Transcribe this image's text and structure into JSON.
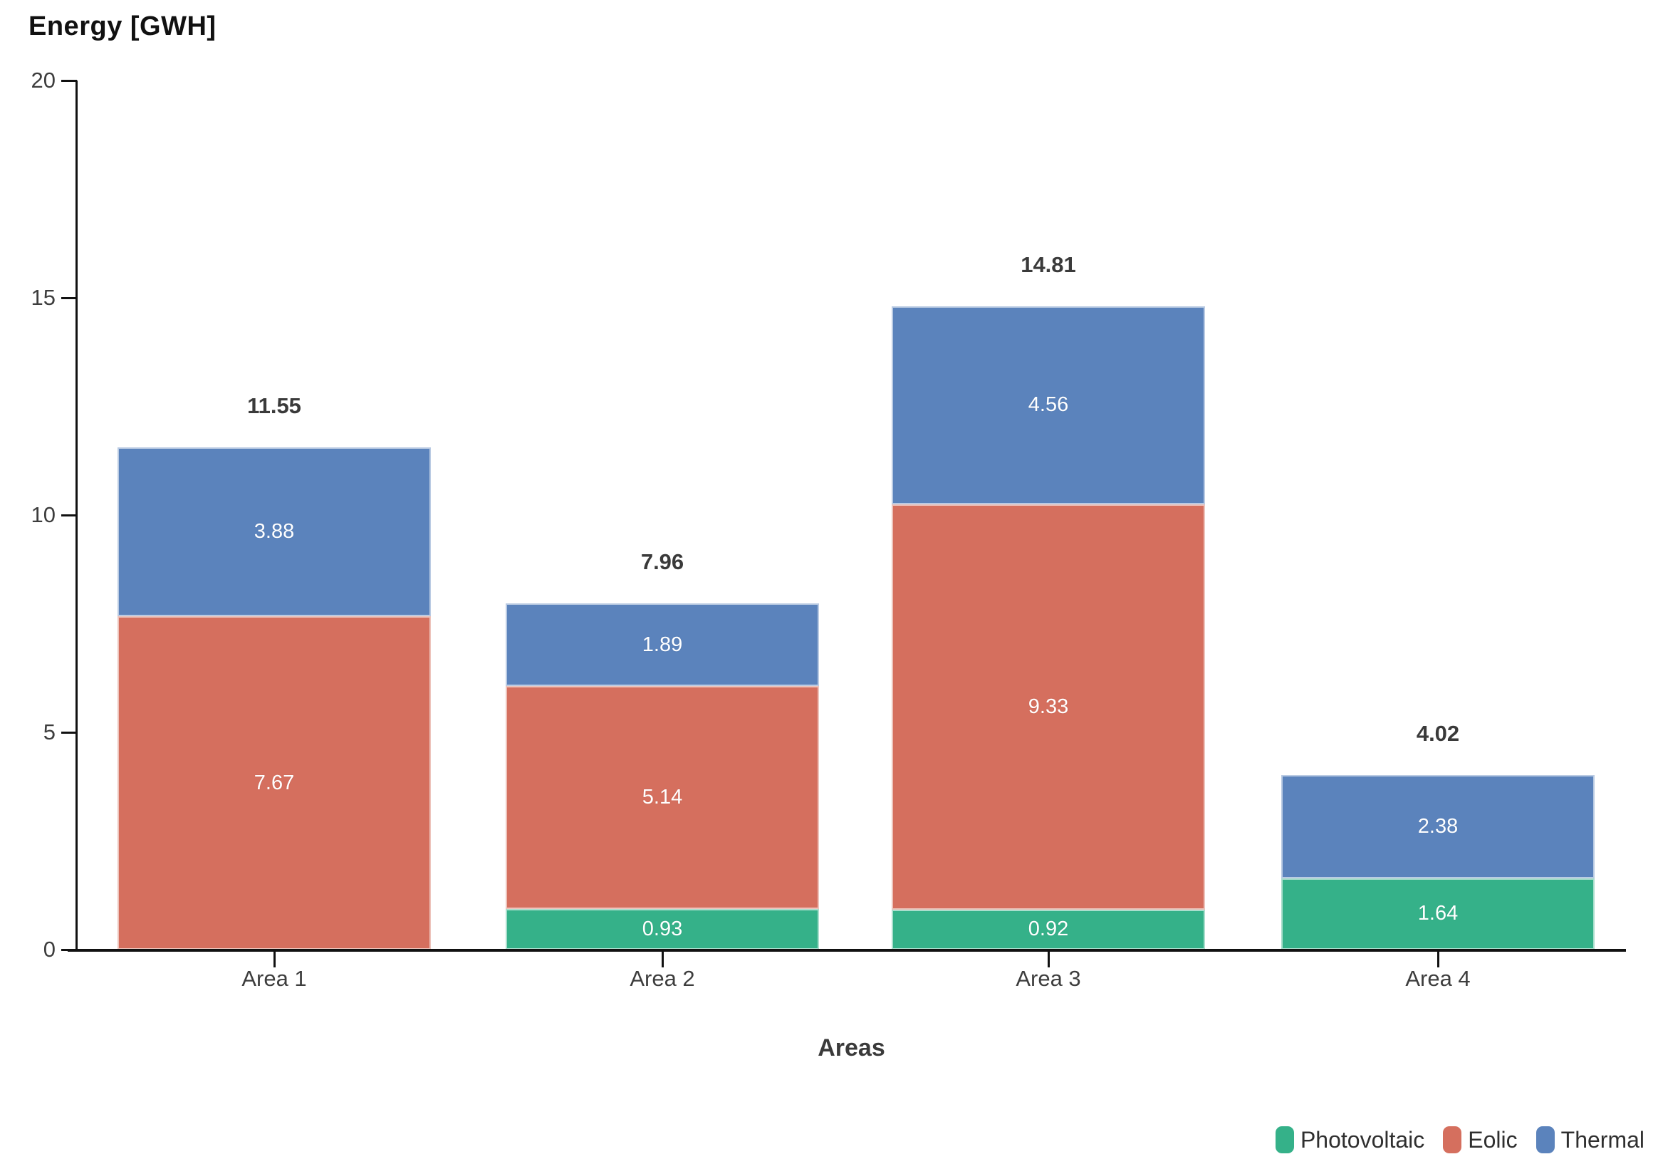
{
  "title": "Energy [GWH]",
  "x_axis_title": "Areas",
  "chart_data": {
    "type": "bar",
    "stacked": true,
    "title": "Energy [GWH]",
    "xlabel": "Areas",
    "ylabel": "Energy [GWH]",
    "categories": [
      "Area 1",
      "Area 2",
      "Area 3",
      "Area 4"
    ],
    "series": [
      {
        "name": "Photovoltaic",
        "color": "#35b189",
        "values": [
          0,
          0.93,
          0.92,
          1.64
        ]
      },
      {
        "name": "Eolic",
        "color": "#d56f5e",
        "values": [
          7.67,
          5.14,
          9.33,
          0
        ]
      },
      {
        "name": "Thermal",
        "color": "#5b83bc",
        "values": [
          3.88,
          1.89,
          4.56,
          2.38
        ]
      }
    ],
    "totals": [
      11.55,
      7.96,
      14.81,
      4.02
    ],
    "ylim": [
      0,
      20
    ],
    "yticks": [
      0,
      5,
      10,
      15,
      20
    ],
    "grid": false,
    "value_labels": "white, centered in each segment, 2 decimals",
    "total_labels": "bold, above each bar, 2 decimals",
    "legend_position": "bottom-right"
  },
  "legend": {
    "items": [
      {
        "label": "Photovoltaic",
        "color": "#35b189"
      },
      {
        "label": "Eolic",
        "color": "#d56f5e"
      },
      {
        "label": "Thermal",
        "color": "#5b83bc"
      }
    ]
  }
}
